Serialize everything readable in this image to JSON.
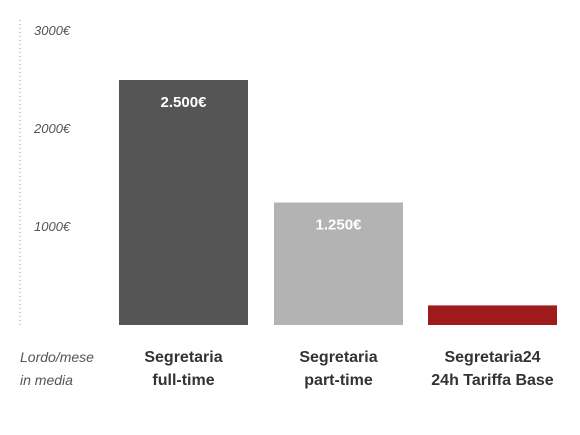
{
  "chart_data": {
    "type": "bar",
    "categories": [
      [
        "Segretaria",
        "full-time"
      ],
      [
        "Segretaria",
        "part-time"
      ],
      [
        "Segretaria24",
        "24h Tariffa Base"
      ]
    ],
    "values": [
      2500,
      1250,
      200
    ],
    "data_labels": [
      "2.500€",
      "1.250€",
      ""
    ],
    "ylim": [
      0,
      3000
    ],
    "y_ticks": [
      1000,
      2000,
      3000
    ],
    "y_tick_labels": [
      "1000€",
      "2000€",
      "3000€"
    ],
    "y_axis_note": [
      "Lordo/mese",
      "in media"
    ],
    "bar_colors": [
      "#555555",
      "#b3b3b3",
      "#9e1b1b"
    ],
    "grid": false
  }
}
